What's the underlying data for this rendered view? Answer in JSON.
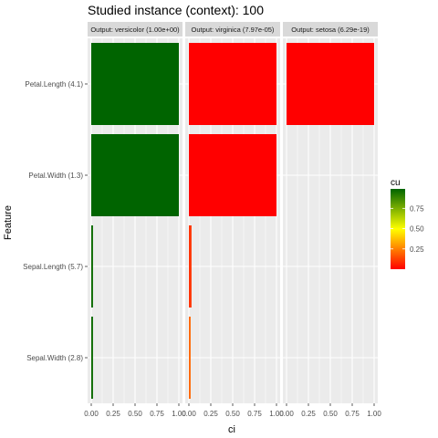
{
  "chart_data": {
    "type": "bar",
    "orientation": "horizontal",
    "title": "Studied instance (context): 100",
    "xlabel": "ci",
    "ylabel": "Feature",
    "xlim": [
      0,
      1
    ],
    "x_ticks": [
      "0.00",
      "0.25",
      "0.50",
      "0.75",
      "1.00"
    ],
    "grid": true,
    "categories": [
      "Petal.Length (4.1)",
      "Petal.Width (1.3)",
      "Sepal.Length (5.7)",
      "Sepal.Width (2.8)"
    ],
    "panels": [
      {
        "strip": "Output: versicolor (1.00e+00)",
        "values": [
          1.0,
          1.0,
          0.02,
          0.02
        ],
        "cu": [
          0.99,
          0.99,
          0.97,
          0.97
        ]
      },
      {
        "strip": "Output: virginica (7.97e-05)",
        "values": [
          1.0,
          1.0,
          0.03,
          0.02
        ],
        "cu": [
          0.0,
          0.0,
          0.1,
          0.2
        ]
      },
      {
        "strip": "Output: setosa (6.29e-19)",
        "values": [
          1.0,
          0.0,
          0.0,
          0.0
        ],
        "cu": [
          0.0,
          0.0,
          0.0,
          0.0
        ]
      }
    ],
    "legend": {
      "title": "cu",
      "position": "right",
      "ticks": [
        0.25,
        0.5,
        0.75
      ],
      "tick_labels": [
        "0.25",
        "0.50",
        "0.75"
      ],
      "range": [
        0,
        0.99
      ],
      "colors": [
        "#ff0000",
        "#ffff00",
        "#006400"
      ]
    }
  }
}
